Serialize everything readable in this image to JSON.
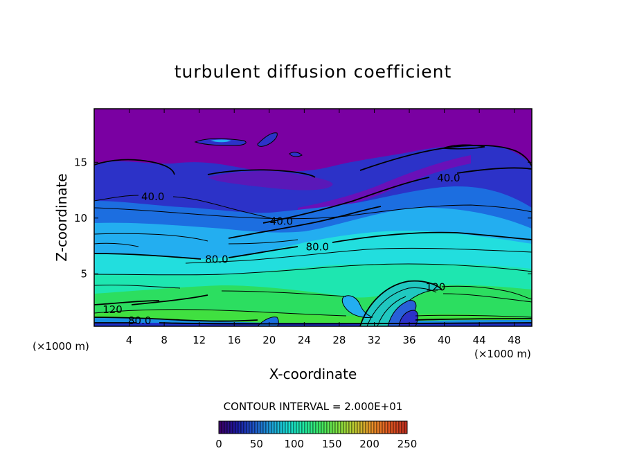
{
  "chart_data": {
    "type": "heatmap",
    "title": "turbulent diffusion coefficient",
    "xlabel": "X-coordinate",
    "ylabel": "Z-coordinate",
    "x_unit_label": "(×1000 m)",
    "x_unit_label_right": "(×1000 m)",
    "xlim": [
      0,
      50
    ],
    "ylim": [
      0.3,
      19.8
    ],
    "x_ticks": [
      4,
      8,
      12,
      16,
      20,
      24,
      28,
      32,
      36,
      40,
      44,
      48
    ],
    "y_ticks": [
      5,
      10,
      15
    ],
    "contour_interval_text": "CONTOUR INTERVAL = 2.000E+01",
    "contour_labels": [
      {
        "text": "40.0",
        "x": 6.7,
        "z": 11.9
      },
      {
        "text": "40.0",
        "x": 21.4,
        "z": 9.7
      },
      {
        "text": "40.0",
        "x": 40.5,
        "z": 13.6
      },
      {
        "text": "80.0",
        "x": 14.0,
        "z": 6.3
      },
      {
        "text": "80.0",
        "x": 25.5,
        "z": 7.4
      },
      {
        "text": "120",
        "x": 2.1,
        "z": 1.8
      },
      {
        "text": "120",
        "x": 39.0,
        "z": 3.8
      },
      {
        "text": "80.0",
        "x": 5.2,
        "z": 0.8
      }
    ],
    "colorbar": {
      "min": 0,
      "max": 250,
      "ticks": [
        0,
        50,
        100,
        150,
        200,
        250
      ],
      "colors": [
        "#3a0068",
        "#1a1aa0",
        "#1e55c8",
        "#1e9ed8",
        "#18d8d0",
        "#20e8a0",
        "#40e860",
        "#80e040",
        "#c0c830",
        "#e89028",
        "#e05820",
        "#c03020"
      ]
    },
    "colors": {
      "upper": "#7a00a2",
      "deep_blue": "#2c32c8",
      "mid_blue": "#1c6ee0",
      "light_blue": "#23aef0",
      "cyan": "#22dede",
      "aqua_green": "#1ee6b0",
      "green": "#2cde60",
      "bright_green": "#40e040"
    }
  }
}
